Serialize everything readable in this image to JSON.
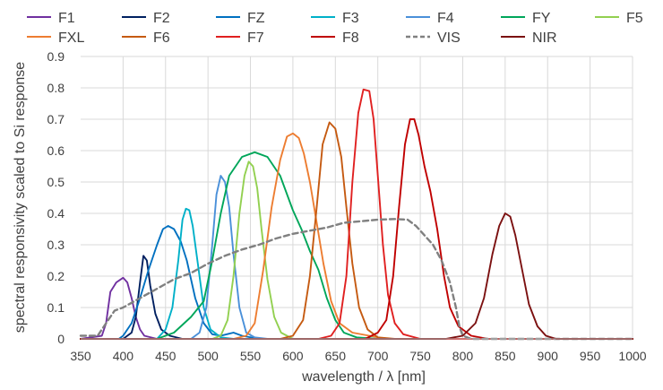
{
  "chart_data": {
    "type": "line",
    "title": "",
    "xlabel": "wavelength / λ [nm]",
    "ylabel": "spectral responsivity scaled to Si response",
    "xlim": [
      350,
      1000
    ],
    "ylim": [
      0,
      0.9
    ],
    "xticks": [
      350,
      400,
      450,
      500,
      550,
      600,
      650,
      700,
      750,
      800,
      850,
      900,
      950,
      1000
    ],
    "yticks": [
      0,
      0.1,
      0.2,
      0.3,
      0.4,
      0.5,
      0.6,
      0.7,
      0.8,
      0.9
    ],
    "xtick_labels": [
      "350",
      "400",
      "450",
      "500",
      "550",
      "600",
      "650",
      "700",
      "750",
      "800",
      "850",
      "900",
      "950",
      "1000"
    ],
    "ytick_labels": [
      "0",
      "0.1",
      "0.2",
      "0.3",
      "0.4",
      "0.5",
      "0.6",
      "0.7",
      "0.8",
      "0.9"
    ],
    "grid": true,
    "legend_position": "top",
    "series": [
      {
        "name": "F1",
        "color": "#7030a0",
        "dashed": false,
        "points": [
          [
            350,
            0
          ],
          [
            375,
            0.01
          ],
          [
            380,
            0.05
          ],
          [
            385,
            0.15
          ],
          [
            392,
            0.18
          ],
          [
            400,
            0.195
          ],
          [
            405,
            0.18
          ],
          [
            410,
            0.13
          ],
          [
            415,
            0.07
          ],
          [
            420,
            0.03
          ],
          [
            425,
            0.01
          ],
          [
            440,
            0
          ],
          [
            1000,
            0
          ]
        ]
      },
      {
        "name": "F2",
        "color": "#002060",
        "dashed": false,
        "points": [
          [
            350,
            0
          ],
          [
            400,
            0
          ],
          [
            410,
            0.02
          ],
          [
            415,
            0.07
          ],
          [
            420,
            0.18
          ],
          [
            424,
            0.265
          ],
          [
            428,
            0.25
          ],
          [
            432,
            0.17
          ],
          [
            438,
            0.08
          ],
          [
            445,
            0.03
          ],
          [
            455,
            0.01
          ],
          [
            470,
            0
          ],
          [
            1000,
            0
          ]
        ]
      },
      {
        "name": "FZ",
        "color": "#0070c0",
        "dashed": false,
        "points": [
          [
            350,
            0
          ],
          [
            395,
            0
          ],
          [
            400,
            0.01
          ],
          [
            410,
            0.05
          ],
          [
            420,
            0.13
          ],
          [
            430,
            0.22
          ],
          [
            440,
            0.3
          ],
          [
            447,
            0.35
          ],
          [
            453,
            0.36
          ],
          [
            460,
            0.35
          ],
          [
            468,
            0.31
          ],
          [
            475,
            0.25
          ],
          [
            485,
            0.13
          ],
          [
            495,
            0.05
          ],
          [
            505,
            0.015
          ],
          [
            515,
            0.01
          ],
          [
            530,
            0.02
          ],
          [
            540,
            0.01
          ],
          [
            560,
            0
          ],
          [
            1000,
            0
          ]
        ]
      },
      {
        "name": "F3",
        "color": "#00b0c8",
        "dashed": false,
        "points": [
          [
            350,
            0
          ],
          [
            440,
            0
          ],
          [
            450,
            0.03
          ],
          [
            458,
            0.1
          ],
          [
            465,
            0.25
          ],
          [
            470,
            0.38
          ],
          [
            474,
            0.415
          ],
          [
            478,
            0.41
          ],
          [
            482,
            0.36
          ],
          [
            488,
            0.24
          ],
          [
            495,
            0.1
          ],
          [
            503,
            0.03
          ],
          [
            515,
            0.005
          ],
          [
            530,
            0
          ],
          [
            1000,
            0
          ]
        ]
      },
      {
        "name": "F4",
        "color": "#4a90d9",
        "dashed": false,
        "points": [
          [
            350,
            0
          ],
          [
            480,
            0
          ],
          [
            490,
            0.02
          ],
          [
            498,
            0.1
          ],
          [
            505,
            0.3
          ],
          [
            510,
            0.46
          ],
          [
            515,
            0.52
          ],
          [
            520,
            0.5
          ],
          [
            525,
            0.42
          ],
          [
            530,
            0.27
          ],
          [
            537,
            0.1
          ],
          [
            545,
            0.02
          ],
          [
            555,
            0.005
          ],
          [
            570,
            0
          ],
          [
            1000,
            0
          ]
        ]
      },
      {
        "name": "FY",
        "color": "#00a65a",
        "dashed": false,
        "points": [
          [
            350,
            0
          ],
          [
            440,
            0
          ],
          [
            460,
            0.02
          ],
          [
            480,
            0.07
          ],
          [
            495,
            0.12
          ],
          [
            505,
            0.25
          ],
          [
            515,
            0.4
          ],
          [
            525,
            0.52
          ],
          [
            540,
            0.58
          ],
          [
            555,
            0.595
          ],
          [
            570,
            0.58
          ],
          [
            585,
            0.52
          ],
          [
            600,
            0.41
          ],
          [
            610,
            0.35
          ],
          [
            620,
            0.28
          ],
          [
            630,
            0.22
          ],
          [
            640,
            0.13
          ],
          [
            650,
            0.06
          ],
          [
            660,
            0.02
          ],
          [
            675,
            0.005
          ],
          [
            700,
            0
          ],
          [
            1000,
            0
          ]
        ]
      },
      {
        "name": "F5",
        "color": "#92d050",
        "dashed": false,
        "points": [
          [
            350,
            0
          ],
          [
            505,
            0
          ],
          [
            515,
            0.01
          ],
          [
            523,
            0.06
          ],
          [
            530,
            0.2
          ],
          [
            537,
            0.4
          ],
          [
            543,
            0.52
          ],
          [
            548,
            0.565
          ],
          [
            553,
            0.55
          ],
          [
            558,
            0.48
          ],
          [
            563,
            0.35
          ],
          [
            570,
            0.19
          ],
          [
            578,
            0.07
          ],
          [
            586,
            0.02
          ],
          [
            600,
            0
          ],
          [
            1000,
            0
          ]
        ]
      },
      {
        "name": "FXL",
        "color": "#ed7d31",
        "dashed": false,
        "points": [
          [
            350,
            0
          ],
          [
            530,
            0
          ],
          [
            545,
            0.01
          ],
          [
            555,
            0.05
          ],
          [
            565,
            0.22
          ],
          [
            575,
            0.42
          ],
          [
            585,
            0.57
          ],
          [
            593,
            0.645
          ],
          [
            600,
            0.655
          ],
          [
            607,
            0.64
          ],
          [
            613,
            0.59
          ],
          [
            620,
            0.5
          ],
          [
            628,
            0.37
          ],
          [
            636,
            0.24
          ],
          [
            645,
            0.12
          ],
          [
            655,
            0.05
          ],
          [
            670,
            0.02
          ],
          [
            690,
            0.01
          ],
          [
            710,
            0
          ],
          [
            1000,
            0
          ]
        ]
      },
      {
        "name": "F6",
        "color": "#c55a11",
        "dashed": false,
        "points": [
          [
            350,
            0
          ],
          [
            585,
            0
          ],
          [
            600,
            0.01
          ],
          [
            612,
            0.06
          ],
          [
            620,
            0.2
          ],
          [
            628,
            0.42
          ],
          [
            635,
            0.62
          ],
          [
            643,
            0.69
          ],
          [
            650,
            0.67
          ],
          [
            657,
            0.58
          ],
          [
            663,
            0.42
          ],
          [
            670,
            0.24
          ],
          [
            678,
            0.1
          ],
          [
            688,
            0.03
          ],
          [
            700,
            0.005
          ],
          [
            720,
            0
          ],
          [
            1000,
            0
          ]
        ]
      },
      {
        "name": "F7",
        "color": "#e02020",
        "dashed": false,
        "points": [
          [
            350,
            0
          ],
          [
            630,
            0
          ],
          [
            645,
            0.01
          ],
          [
            655,
            0.05
          ],
          [
            663,
            0.2
          ],
          [
            670,
            0.5
          ],
          [
            677,
            0.72
          ],
          [
            683,
            0.795
          ],
          [
            690,
            0.79
          ],
          [
            695,
            0.7
          ],
          [
            700,
            0.52
          ],
          [
            706,
            0.3
          ],
          [
            712,
            0.14
          ],
          [
            720,
            0.05
          ],
          [
            730,
            0.015
          ],
          [
            750,
            0
          ],
          [
            1000,
            0
          ]
        ]
      },
      {
        "name": "F8",
        "color": "#c00000",
        "dashed": false,
        "points": [
          [
            350,
            0
          ],
          [
            685,
            0
          ],
          [
            700,
            0.02
          ],
          [
            710,
            0.06
          ],
          [
            718,
            0.2
          ],
          [
            725,
            0.42
          ],
          [
            732,
            0.62
          ],
          [
            738,
            0.7
          ],
          [
            743,
            0.7
          ],
          [
            748,
            0.65
          ],
          [
            755,
            0.55
          ],
          [
            762,
            0.47
          ],
          [
            770,
            0.35
          ],
          [
            778,
            0.2
          ],
          [
            785,
            0.1
          ],
          [
            795,
            0.04
          ],
          [
            810,
            0.01
          ],
          [
            830,
            0
          ],
          [
            1000,
            0
          ]
        ]
      },
      {
        "name": "VIS",
        "color": "#808080",
        "dashed": true,
        "points": [
          [
            350,
            0.01
          ],
          [
            370,
            0.01
          ],
          [
            380,
            0.05
          ],
          [
            390,
            0.09
          ],
          [
            400,
            0.1
          ],
          [
            420,
            0.13
          ],
          [
            440,
            0.16
          ],
          [
            460,
            0.19
          ],
          [
            480,
            0.21
          ],
          [
            500,
            0.24
          ],
          [
            520,
            0.265
          ],
          [
            540,
            0.285
          ],
          [
            560,
            0.3
          ],
          [
            580,
            0.32
          ],
          [
            600,
            0.335
          ],
          [
            620,
            0.345
          ],
          [
            640,
            0.355
          ],
          [
            660,
            0.37
          ],
          [
            680,
            0.375
          ],
          [
            700,
            0.38
          ],
          [
            720,
            0.382
          ],
          [
            735,
            0.38
          ],
          [
            745,
            0.36
          ],
          [
            755,
            0.33
          ],
          [
            765,
            0.3
          ],
          [
            775,
            0.25
          ],
          [
            785,
            0.18
          ],
          [
            792,
            0.1
          ],
          [
            796,
            0.04
          ],
          [
            800,
            0.01
          ],
          [
            810,
            0
          ],
          [
            1000,
            0
          ]
        ]
      },
      {
        "name": "NIR",
        "color": "#7b1010",
        "dashed": false,
        "points": [
          [
            350,
            0
          ],
          [
            780,
            0
          ],
          [
            800,
            0.01
          ],
          [
            815,
            0.05
          ],
          [
            825,
            0.13
          ],
          [
            835,
            0.27
          ],
          [
            843,
            0.36
          ],
          [
            850,
            0.4
          ],
          [
            856,
            0.39
          ],
          [
            862,
            0.33
          ],
          [
            870,
            0.22
          ],
          [
            878,
            0.11
          ],
          [
            888,
            0.04
          ],
          [
            898,
            0.01
          ],
          [
            910,
            0
          ],
          [
            1000,
            0
          ]
        ]
      }
    ]
  }
}
